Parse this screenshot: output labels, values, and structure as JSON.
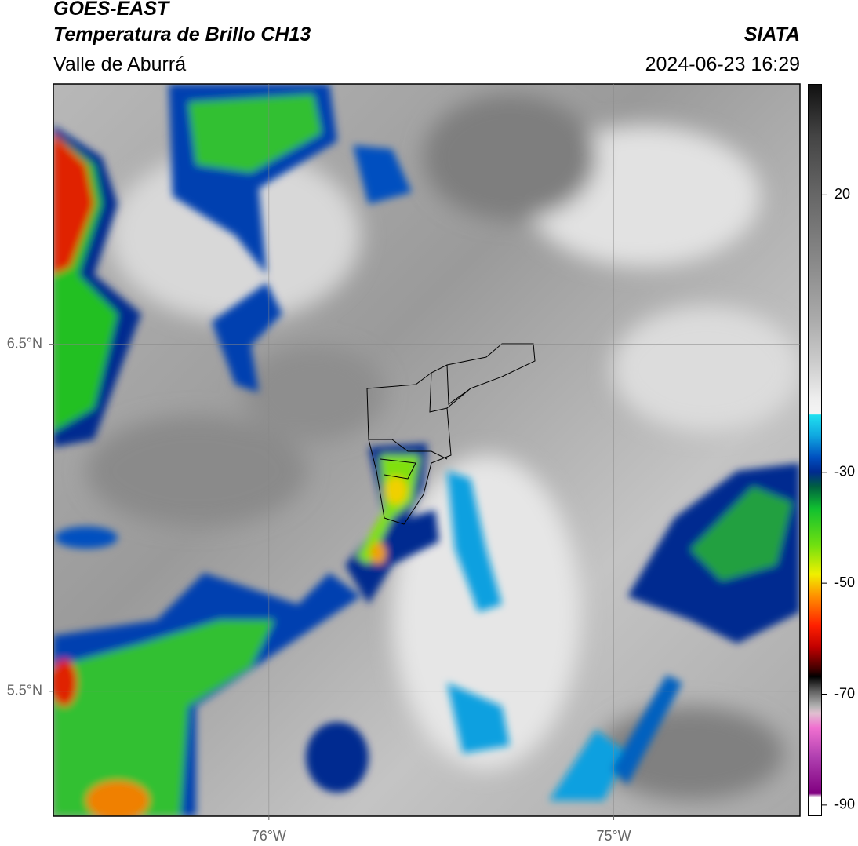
{
  "header": {
    "title": "GOES-EAST",
    "subtitle": "Temperatura de Brillo CH13",
    "region": "Valle de Aburrá",
    "source": "SIATA",
    "timestamp": "2024-06-23 16:29"
  },
  "map": {
    "xlim": [
      -76.625,
      -74.46
    ],
    "ylim": [
      5.14,
      7.25
    ],
    "xticks": [
      {
        "value": -76,
        "label": "76°W"
      },
      {
        "value": -75,
        "label": "75°W"
      }
    ],
    "yticks": [
      {
        "value": 6.5,
        "label": "6.5°N"
      },
      {
        "value": 5.5,
        "label": "5.5°N"
      }
    ],
    "grid": true
  },
  "colorbar": {
    "clim": [
      -92,
      40
    ],
    "ticks": [
      20,
      -30,
      -50,
      -70,
      -90
    ]
  }
}
